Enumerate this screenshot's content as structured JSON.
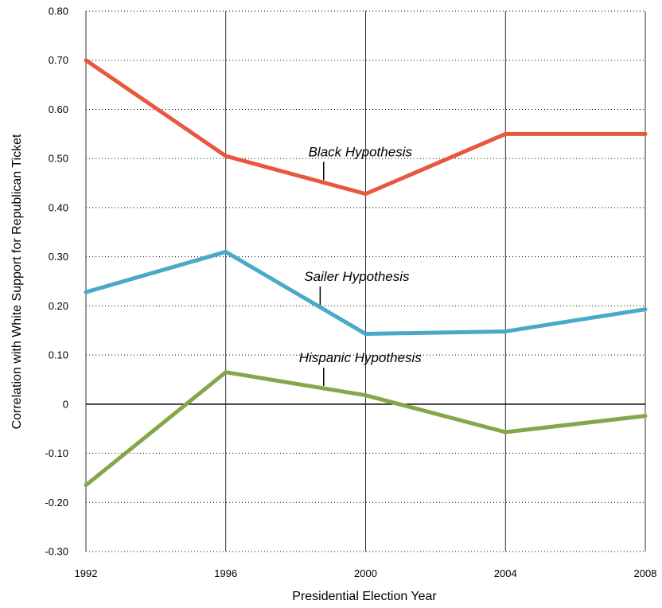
{
  "chart_data": {
    "type": "line",
    "title": "",
    "xlabel": "Presidential Election Year",
    "ylabel": "Correlation with White Support for Republican Ticket",
    "x": [
      1992,
      1996,
      2000,
      2004,
      2008
    ],
    "x_tick_labels": [
      "1992",
      "1996",
      "2000",
      "2004",
      "2008"
    ],
    "ylim": [
      -0.3,
      0.8
    ],
    "y_ticks": [
      -0.3,
      -0.2,
      -0.1,
      0,
      0.1,
      0.2,
      0.3,
      0.4,
      0.5,
      0.6,
      0.7,
      0.8
    ],
    "y_tick_labels": [
      "-0.30",
      "-0.20",
      "-0.10",
      "0",
      "0.10",
      "0.20",
      "0.30",
      "0.40",
      "0.50",
      "0.60",
      "0.70",
      "0.80"
    ],
    "grid": {
      "x": "solid",
      "y": "dotted"
    },
    "zero_line": true,
    "series": [
      {
        "name": "Black Hypothesis",
        "color": "#e8573f",
        "values": [
          0.7,
          0.505,
          0.428,
          0.55,
          0.55
        ],
        "label_anchor_x": 1998.8
      },
      {
        "name": "Sailer Hypothesis",
        "color": "#4aa9c9",
        "values": [
          0.228,
          0.31,
          0.143,
          0.148,
          0.193
        ],
        "label_anchor_x": 1998.7
      },
      {
        "name": "Hispanic Hypothesis",
        "color": "#86a64a",
        "values": [
          -0.165,
          0.065,
          0.018,
          -0.057,
          -0.024
        ],
        "label_anchor_x": 1998.8
      }
    ]
  }
}
